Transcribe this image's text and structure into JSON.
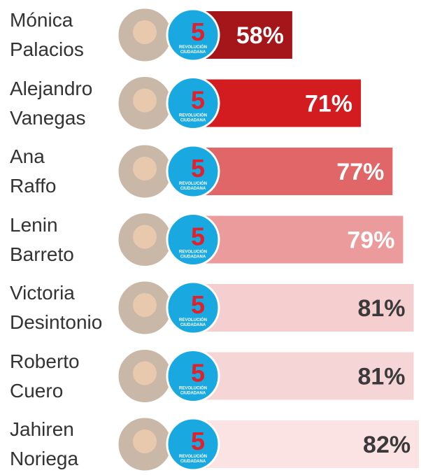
{
  "chart_data": {
    "type": "bar",
    "orientation": "horizontal",
    "categories": [
      "Mónica Palacios",
      "Alejandro Vanegas",
      "Ana Raffo",
      "Lenin Barreto",
      "Victoria Desintonio",
      "Roberto Cuero",
      "Jahiren Noriega"
    ],
    "values": [
      58,
      71,
      77,
      79,
      81,
      81,
      82
    ],
    "value_labels": [
      "58%",
      "71%",
      "77%",
      "79%",
      "81%",
      "81%",
      "82%"
    ],
    "colors": [
      "#a5161a",
      "#d21c1f",
      "#e06668",
      "#eb9b9c",
      "#f5cfd0",
      "#f6d5d6",
      "#fbe3e4"
    ],
    "label_colors": [
      "#ffffff",
      "#ffffff",
      "#ffffff",
      "#ffffff",
      "#3a3a3a",
      "#3a3a3a",
      "#3a3a3a"
    ],
    "logo": {
      "mark": "5",
      "lines": [
        "REVOLUCIÓN",
        "CIUDADANA"
      ]
    }
  }
}
